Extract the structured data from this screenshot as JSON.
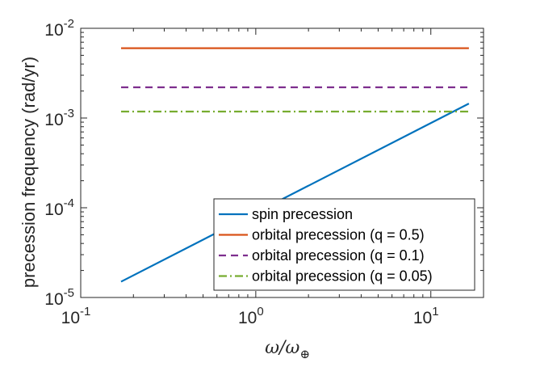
{
  "chart_data": {
    "type": "line",
    "xscale": "log",
    "yscale": "log",
    "xlim": [
      0.1,
      20
    ],
    "ylim": [
      1e-05,
      0.01
    ],
    "xlabel": "ω/ω⊕",
    "xlabel_parts": {
      "main": "ω/ω",
      "sub": "⊕"
    },
    "ylabel": "precession frequency (rad/yr)",
    "x_ticks": [
      {
        "value": 0.1,
        "base": "10",
        "exp": "-1"
      },
      {
        "value": 1,
        "base": "10",
        "exp": "0"
      },
      {
        "value": 10,
        "base": "10",
        "exp": "1"
      }
    ],
    "y_ticks": [
      {
        "value": 1e-05,
        "base": "10",
        "exp": "-5"
      },
      {
        "value": 0.0001,
        "base": "10",
        "exp": "-4"
      },
      {
        "value": 0.001,
        "base": "10",
        "exp": "-3"
      },
      {
        "value": 0.01,
        "base": "10",
        "exp": "-2"
      }
    ],
    "legend_position": "bottom-right",
    "series": [
      {
        "name": "spin precession",
        "color": "#0072bd",
        "dash": "solid",
        "x": [
          0.17,
          16.5
        ],
        "y": [
          1.5e-05,
          0.00145
        ]
      },
      {
        "name": "orbital precession (q = 0.5)",
        "color": "#d95319",
        "dash": "solid",
        "x": [
          0.17,
          16.5
        ],
        "y": [
          0.006,
          0.006
        ]
      },
      {
        "name": "orbital precession (q = 0.1)",
        "color": "#7e2f8e",
        "dash": "dashed",
        "x": [
          0.17,
          16.5
        ],
        "y": [
          0.0022,
          0.0022
        ]
      },
      {
        "name": "orbital precession (q = 0.05)",
        "color": "#77ac30",
        "dash": "dashdot",
        "x": [
          0.17,
          16.5
        ],
        "y": [
          0.00118,
          0.00118
        ]
      }
    ]
  }
}
